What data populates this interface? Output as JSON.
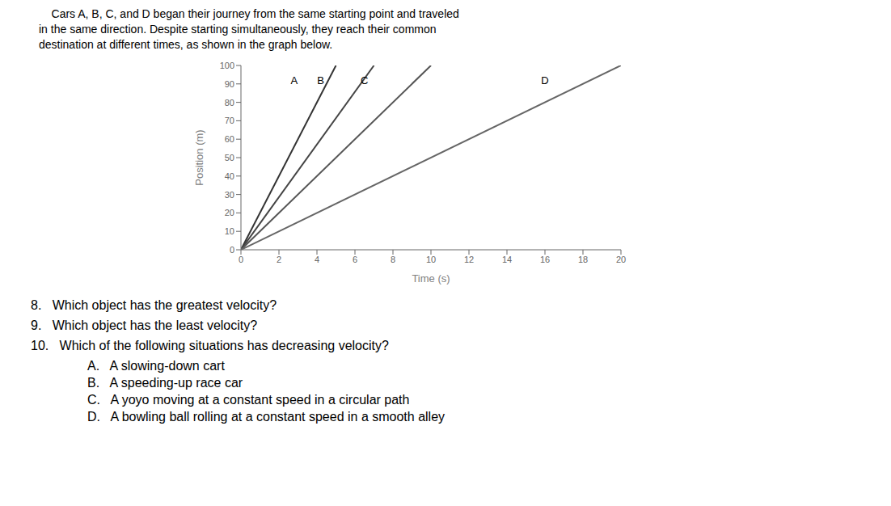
{
  "chart_data": {
    "type": "line",
    "title": [
      "    Cars A, B, C, and D began their journey from the same starting point and traveled",
      "in the same direction. Despite starting simultaneously, they reach their common",
      "destination at different times, as shown in the graph below."
    ],
    "x_label": "Time (s)",
    "y_label": "Position (m)",
    "xlim": [
      0,
      20
    ],
    "ylim": [
      0,
      100
    ],
    "xticks": [
      0,
      2,
      4,
      6,
      8,
      10,
      12,
      14,
      16,
      18,
      20
    ],
    "yticks": [
      0,
      10,
      20,
      30,
      40,
      50,
      60,
      70,
      80,
      90,
      100
    ],
    "grid": false,
    "series": [
      {
        "color": "#333333",
        "x": [
          0,
          5
        ],
        "values": [
          0,
          100
        ]
      },
      {
        "color": "#444444",
        "x": [
          0,
          7
        ],
        "values": [
          0,
          100
        ]
      },
      {
        "color": "#555555",
        "x": [
          0,
          10
        ],
        "values": [
          0,
          100
        ]
      },
      {
        "color": "#666666",
        "x": [
          0,
          20
        ],
        "values": [
          0,
          100
        ]
      }
    ],
    "annotations": [
      {
        "text": "A",
        "x": 2.8,
        "y": 92
      },
      {
        "text": "B",
        "x": 4.2,
        "y": 92
      },
      {
        "text": "C",
        "x": 6.5,
        "y": 92
      },
      {
        "text": "D",
        "x": 16.0,
        "y": 92
      }
    ],
    "questions": [
      "8.   Which object has the greatest velocity?",
      "9.   Which object has the least velocity?",
      "10.   Which of the following situations has decreasing velocity?"
    ],
    "choices": [
      "A.   A slowing-down cart",
      "B.   A speeding-up race car",
      "C.   A yoyo moving at a constant speed in a circular path",
      "D.   A bowling ball rolling at a constant speed in a smooth alley"
    ]
  }
}
